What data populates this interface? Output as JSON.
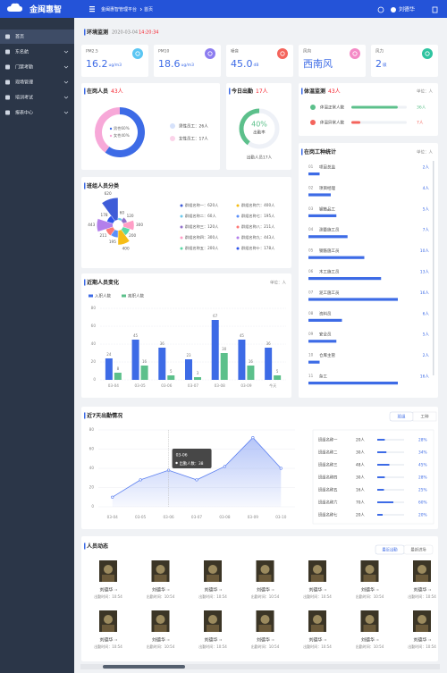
{
  "sidebar": {
    "logo": "金闽惠智",
    "menu": [
      "首页",
      "东名航",
      "门禁考勤",
      "现场管理",
      "培训考试",
      "报表中心"
    ]
  },
  "header": {
    "breadcrumb": [
      "金闽惠智管理平台",
      "首页"
    ],
    "user": "刘德华"
  },
  "environment": {
    "title": "环境监测",
    "date": "2020-03-04",
    "time": "14:20:34",
    "cards": [
      {
        "label": "PM2.5",
        "value": "16.2",
        "unit": "ug/m3",
        "color": "#5bc6f3"
      },
      {
        "label": "PM10",
        "value": "18.6",
        "unit": "ug/m3",
        "color": "#8c7cf0"
      },
      {
        "label": "噪音",
        "value": "45.0",
        "unit": "dB",
        "color": "#f4645c"
      },
      {
        "label": "风向",
        "value": "西南风",
        "color": "#f48ac6"
      },
      {
        "label": "风力",
        "value": "2",
        "unit": "级",
        "color": "#2ec4a0"
      }
    ]
  },
  "on_duty": {
    "title": "在岗人员",
    "count": "43人",
    "type": "pie",
    "categories": [
      "男性",
      "女性"
    ],
    "values": [
      60,
      40
    ],
    "value_labels": [
      "60%",
      "40%"
    ],
    "colors": [
      "#3d6be6",
      "#f7a8d8"
    ],
    "staff": [
      "男性员工：26人",
      "女性员工：17人"
    ]
  },
  "attendance": {
    "title": "今日出勤",
    "count": "17人",
    "type": "pie",
    "values": [
      40
    ],
    "value_labels": [
      "40%"
    ],
    "color": "#5cc08b",
    "label": "出勤率",
    "footer": "出勤人员17人"
  },
  "temperature": {
    "title": "体温监测",
    "count": "43人",
    "unit": "单位：人",
    "type": "bar",
    "categories": [
      "体温正常人数",
      "体温异常人数"
    ],
    "values": [
      36,
      7
    ],
    "value_labels": [
      "36人",
      "7人"
    ],
    "colors": [
      "#5cc08b",
      "#f4645c"
    ],
    "xlim": [
      0,
      43
    ]
  },
  "work_types": {
    "title": "在岗工种统计",
    "unit": "单位：人",
    "type": "bar",
    "index": [
      "01",
      "02",
      "03",
      "04",
      "05",
      "06",
      "07",
      "08",
      "09",
      "10",
      "11"
    ],
    "categories": [
      "项目总监",
      "项目经理",
      "钢筋品工",
      "测量施工员",
      "钢筋施工员",
      "木工施工员",
      "泥工施工员",
      "资料员",
      "安全员",
      "仓库主管",
      "杂工"
    ],
    "values": [
      2,
      4,
      5,
      7,
      10,
      13,
      16,
      6,
      5,
      2,
      16
    ],
    "value_labels": [
      "2人",
      "4人",
      "5人",
      "7人",
      "10人",
      "13人",
      "16人",
      "6人",
      "5人",
      "2人",
      "16人"
    ],
    "color": "#3d6be6",
    "xlim": [
      0,
      20
    ]
  },
  "groups": {
    "title": "班组人员分类",
    "type": "pie",
    "values": [
      620,
      60,
      120,
      300,
      200,
      400,
      195,
      211,
      443,
      178
    ],
    "legend": [
      "群组名称一：620人",
      "群组名称二：60人",
      "群组名称三：120人",
      "群组名称四：300人",
      "群组名称五：200人",
      "群组名称六：400人",
      "群组名称七：195人",
      "群组名称八：211人",
      "群组名称九：443人",
      "群组名称十：178人"
    ],
    "colors": [
      "#3e5cd8",
      "#6dc8ec",
      "#9270ca",
      "#ff9ec6",
      "#5ad8a6",
      "#f6bd16",
      "#5b8ff9",
      "#ff7875",
      "#b37feb",
      "#2f54eb"
    ]
  },
  "recent_change": {
    "title": "近期人员变化",
    "unit": "单位：人",
    "type": "bar",
    "categories": [
      "03-04",
      "03-05",
      "03-06",
      "03-07",
      "03-08",
      "03-09",
      "今天"
    ],
    "series": [
      {
        "name": "入职人数",
        "color": "#3d6be6",
        "values": [
          24,
          45,
          36,
          23,
          67,
          45,
          36
        ]
      },
      {
        "name": "离职人数",
        "color": "#5cc08b",
        "values": [
          8,
          16,
          5,
          3,
          30,
          16,
          5
        ]
      }
    ],
    "ylim": [
      0,
      80
    ],
    "yticks": [
      0,
      20,
      40,
      60,
      80
    ],
    "grid": true
  },
  "attendance_7d": {
    "title": "近7天出勤情况",
    "tabs": [
      "班组",
      "工种"
    ],
    "type": "line",
    "categories": [
      "03-04",
      "03-05",
      "03-06",
      "03-07",
      "03-08",
      "03-09",
      "03-10"
    ],
    "values": [
      10,
      28,
      38,
      28,
      42,
      72,
      40
    ],
    "color": "#5b7ff0",
    "ylim": [
      0,
      80
    ],
    "yticks": [
      0,
      20,
      40,
      60,
      80
    ],
    "grid": true,
    "tooltip_label": "出勤人数：",
    "teams": {
      "type": "bar",
      "categories": [
        "班组名称一",
        "班组名称二",
        "班组名称三",
        "班组名称四",
        "班组名称五",
        "班组名称六",
        "班组名称七"
      ],
      "counts": [
        "20人",
        "30人",
        "48人",
        "30人",
        "16人",
        "70人",
        "20人"
      ],
      "values": [
        28,
        34,
        45,
        28,
        25,
        60,
        20
      ],
      "value_labels": [
        "28%",
        "34%",
        "45%",
        "28%",
        "25%",
        "60%",
        "20%"
      ],
      "color": "#3d6be6",
      "xlim": [
        0,
        100
      ]
    }
  },
  "people": {
    "title": "人员动态",
    "tabs": [
      "最近出勤",
      "最新进场"
    ],
    "items": [
      {
        "name": "刘德华",
        "time": "出勤时间：10:54"
      },
      {
        "name": "刘德华",
        "time": "出勤时间：10:54"
      },
      {
        "name": "刘德华",
        "time": "出勤时间：10:54"
      },
      {
        "name": "刘德华",
        "time": "出勤时间：10:54"
      },
      {
        "name": "刘德华",
        "time": "出勤时间：10:54"
      },
      {
        "name": "刘德华",
        "time": "出勤时间：10:54"
      },
      {
        "name": "刘德华",
        "time": "出勤时间：10:54"
      },
      {
        "name": "刘德华",
        "time": "出勤时间：10:54"
      },
      {
        "name": "刘德华",
        "time": "出勤时间：10:54"
      },
      {
        "name": "刘德华",
        "time": "出勤时间：10:54"
      },
      {
        "name": "刘德华",
        "time": "出勤时间：10:54"
      },
      {
        "name": "刘德华",
        "time": "出勤时间：10:54"
      },
      {
        "name": "刘德华",
        "time": "出勤时间：10:54"
      },
      {
        "name": "刘德华",
        "time": "出勤时间：10:54"
      }
    ]
  }
}
